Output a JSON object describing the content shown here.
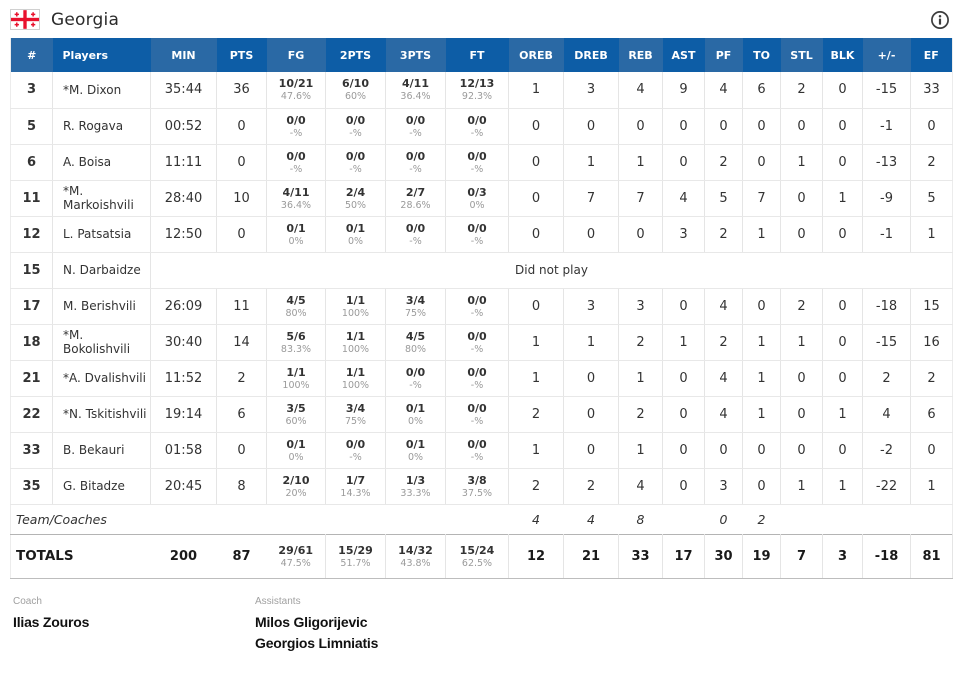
{
  "team": {
    "name": "Georgia"
  },
  "icons": {
    "flag": "georgia-flag",
    "info": "info-circle"
  },
  "colors": {
    "header_light": "#2a69a5",
    "header_dark": "#0d5da6",
    "flag_red": "#e8112d"
  },
  "columns": [
    "#",
    "Players",
    "MIN",
    "PTS",
    "FG",
    "2PTS",
    "3PTS",
    "FT",
    "OREB",
    "DREB",
    "REB",
    "AST",
    "PF",
    "TO",
    "STL",
    "BLK",
    "+/-",
    "EF"
  ],
  "players": [
    {
      "num": "3",
      "name": "*M. Dixon",
      "min": "35:44",
      "pts": "36",
      "shots": [
        {
          "made": "10/21",
          "pct": "47.6%"
        },
        {
          "made": "6/10",
          "pct": "60%"
        },
        {
          "made": "4/11",
          "pct": "36.4%"
        },
        {
          "made": "12/13",
          "pct": "92.3%"
        }
      ],
      "stats": [
        "1",
        "3",
        "4",
        "9",
        "4",
        "6",
        "2",
        "0",
        "-15",
        "33"
      ]
    },
    {
      "num": "5",
      "name": "R. Rogava",
      "min": "00:52",
      "pts": "0",
      "shots": [
        {
          "made": "0/0",
          "pct": "-%"
        },
        {
          "made": "0/0",
          "pct": "-%"
        },
        {
          "made": "0/0",
          "pct": "-%"
        },
        {
          "made": "0/0",
          "pct": "-%"
        }
      ],
      "stats": [
        "0",
        "0",
        "0",
        "0",
        "0",
        "0",
        "0",
        "0",
        "-1",
        "0"
      ]
    },
    {
      "num": "6",
      "name": "A. Boisa",
      "min": "11:11",
      "pts": "0",
      "shots": [
        {
          "made": "0/0",
          "pct": "-%"
        },
        {
          "made": "0/0",
          "pct": "-%"
        },
        {
          "made": "0/0",
          "pct": "-%"
        },
        {
          "made": "0/0",
          "pct": "-%"
        }
      ],
      "stats": [
        "0",
        "1",
        "1",
        "0",
        "2",
        "0",
        "1",
        "0",
        "-13",
        "2"
      ]
    },
    {
      "num": "11",
      "name": "*M. Markoishvili",
      "min": "28:40",
      "pts": "10",
      "shots": [
        {
          "made": "4/11",
          "pct": "36.4%"
        },
        {
          "made": "2/4",
          "pct": "50%"
        },
        {
          "made": "2/7",
          "pct": "28.6%"
        },
        {
          "made": "0/3",
          "pct": "0%"
        }
      ],
      "stats": [
        "0",
        "7",
        "7",
        "4",
        "5",
        "7",
        "0",
        "1",
        "-9",
        "5"
      ]
    },
    {
      "num": "12",
      "name": "L. Patsatsia",
      "min": "12:50",
      "pts": "0",
      "shots": [
        {
          "made": "0/1",
          "pct": "0%"
        },
        {
          "made": "0/1",
          "pct": "0%"
        },
        {
          "made": "0/0",
          "pct": "-%"
        },
        {
          "made": "0/0",
          "pct": "-%"
        }
      ],
      "stats": [
        "0",
        "0",
        "0",
        "3",
        "2",
        "1",
        "0",
        "0",
        "-1",
        "1"
      ]
    },
    {
      "num": "15",
      "name": "N. Darbaidze",
      "dnp": true,
      "dnp_text": "Did not play"
    },
    {
      "num": "17",
      "name": "M. Berishvili",
      "min": "26:09",
      "pts": "11",
      "shots": [
        {
          "made": "4/5",
          "pct": "80%"
        },
        {
          "made": "1/1",
          "pct": "100%"
        },
        {
          "made": "3/4",
          "pct": "75%"
        },
        {
          "made": "0/0",
          "pct": "-%"
        }
      ],
      "stats": [
        "0",
        "3",
        "3",
        "0",
        "4",
        "0",
        "2",
        "0",
        "-18",
        "15"
      ]
    },
    {
      "num": "18",
      "name": "*M. Bokolishvili",
      "min": "30:40",
      "pts": "14",
      "shots": [
        {
          "made": "5/6",
          "pct": "83.3%"
        },
        {
          "made": "1/1",
          "pct": "100%"
        },
        {
          "made": "4/5",
          "pct": "80%"
        },
        {
          "made": "0/0",
          "pct": "-%"
        }
      ],
      "stats": [
        "1",
        "1",
        "2",
        "1",
        "2",
        "1",
        "1",
        "0",
        "-15",
        "16"
      ]
    },
    {
      "num": "21",
      "name": "*A. Dvalishvili",
      "min": "11:52",
      "pts": "2",
      "shots": [
        {
          "made": "1/1",
          "pct": "100%"
        },
        {
          "made": "1/1",
          "pct": "100%"
        },
        {
          "made": "0/0",
          "pct": "-%"
        },
        {
          "made": "0/0",
          "pct": "-%"
        }
      ],
      "stats": [
        "1",
        "0",
        "1",
        "0",
        "4",
        "1",
        "0",
        "0",
        "2",
        "2"
      ]
    },
    {
      "num": "22",
      "name": "*N. Tskitishvili",
      "min": "19:14",
      "pts": "6",
      "shots": [
        {
          "made": "3/5",
          "pct": "60%"
        },
        {
          "made": "3/4",
          "pct": "75%"
        },
        {
          "made": "0/1",
          "pct": "0%"
        },
        {
          "made": "0/0",
          "pct": "-%"
        }
      ],
      "stats": [
        "2",
        "0",
        "2",
        "0",
        "4",
        "1",
        "0",
        "1",
        "4",
        "6"
      ]
    },
    {
      "num": "33",
      "name": "B. Bekauri",
      "min": "01:58",
      "pts": "0",
      "shots": [
        {
          "made": "0/1",
          "pct": "0%"
        },
        {
          "made": "0/0",
          "pct": "-%"
        },
        {
          "made": "0/1",
          "pct": "0%"
        },
        {
          "made": "0/0",
          "pct": "-%"
        }
      ],
      "stats": [
        "1",
        "0",
        "1",
        "0",
        "0",
        "0",
        "0",
        "0",
        "-2",
        "0"
      ]
    },
    {
      "num": "35",
      "name": "G. Bitadze",
      "min": "20:45",
      "pts": "8",
      "shots": [
        {
          "made": "2/10",
          "pct": "20%"
        },
        {
          "made": "1/7",
          "pct": "14.3%"
        },
        {
          "made": "1/3",
          "pct": "33.3%"
        },
        {
          "made": "3/8",
          "pct": "37.5%"
        }
      ],
      "stats": [
        "2",
        "2",
        "4",
        "0",
        "3",
        "0",
        "1",
        "1",
        "-22",
        "1"
      ]
    }
  ],
  "team_row": {
    "label": "Team/Coaches",
    "stats": [
      "4",
      "4",
      "8",
      "",
      "0",
      "2",
      "",
      "",
      "",
      ""
    ]
  },
  "totals": {
    "label": "TOTALS",
    "min": "200",
    "pts": "87",
    "shots": [
      {
        "made": "29/61",
        "pct": "47.5%"
      },
      {
        "made": "15/29",
        "pct": "51.7%"
      },
      {
        "made": "14/32",
        "pct": "43.8%"
      },
      {
        "made": "15/24",
        "pct": "62.5%"
      }
    ],
    "stats": [
      "12",
      "21",
      "33",
      "17",
      "30",
      "19",
      "7",
      "3",
      "-18",
      "81"
    ]
  },
  "staff": {
    "coach_label": "Coach",
    "coach_name": "Ilias Zouros",
    "assistants_label": "Assistants",
    "assistants": [
      "Milos Gligorijevic",
      "Georgios Limniatis"
    ]
  }
}
